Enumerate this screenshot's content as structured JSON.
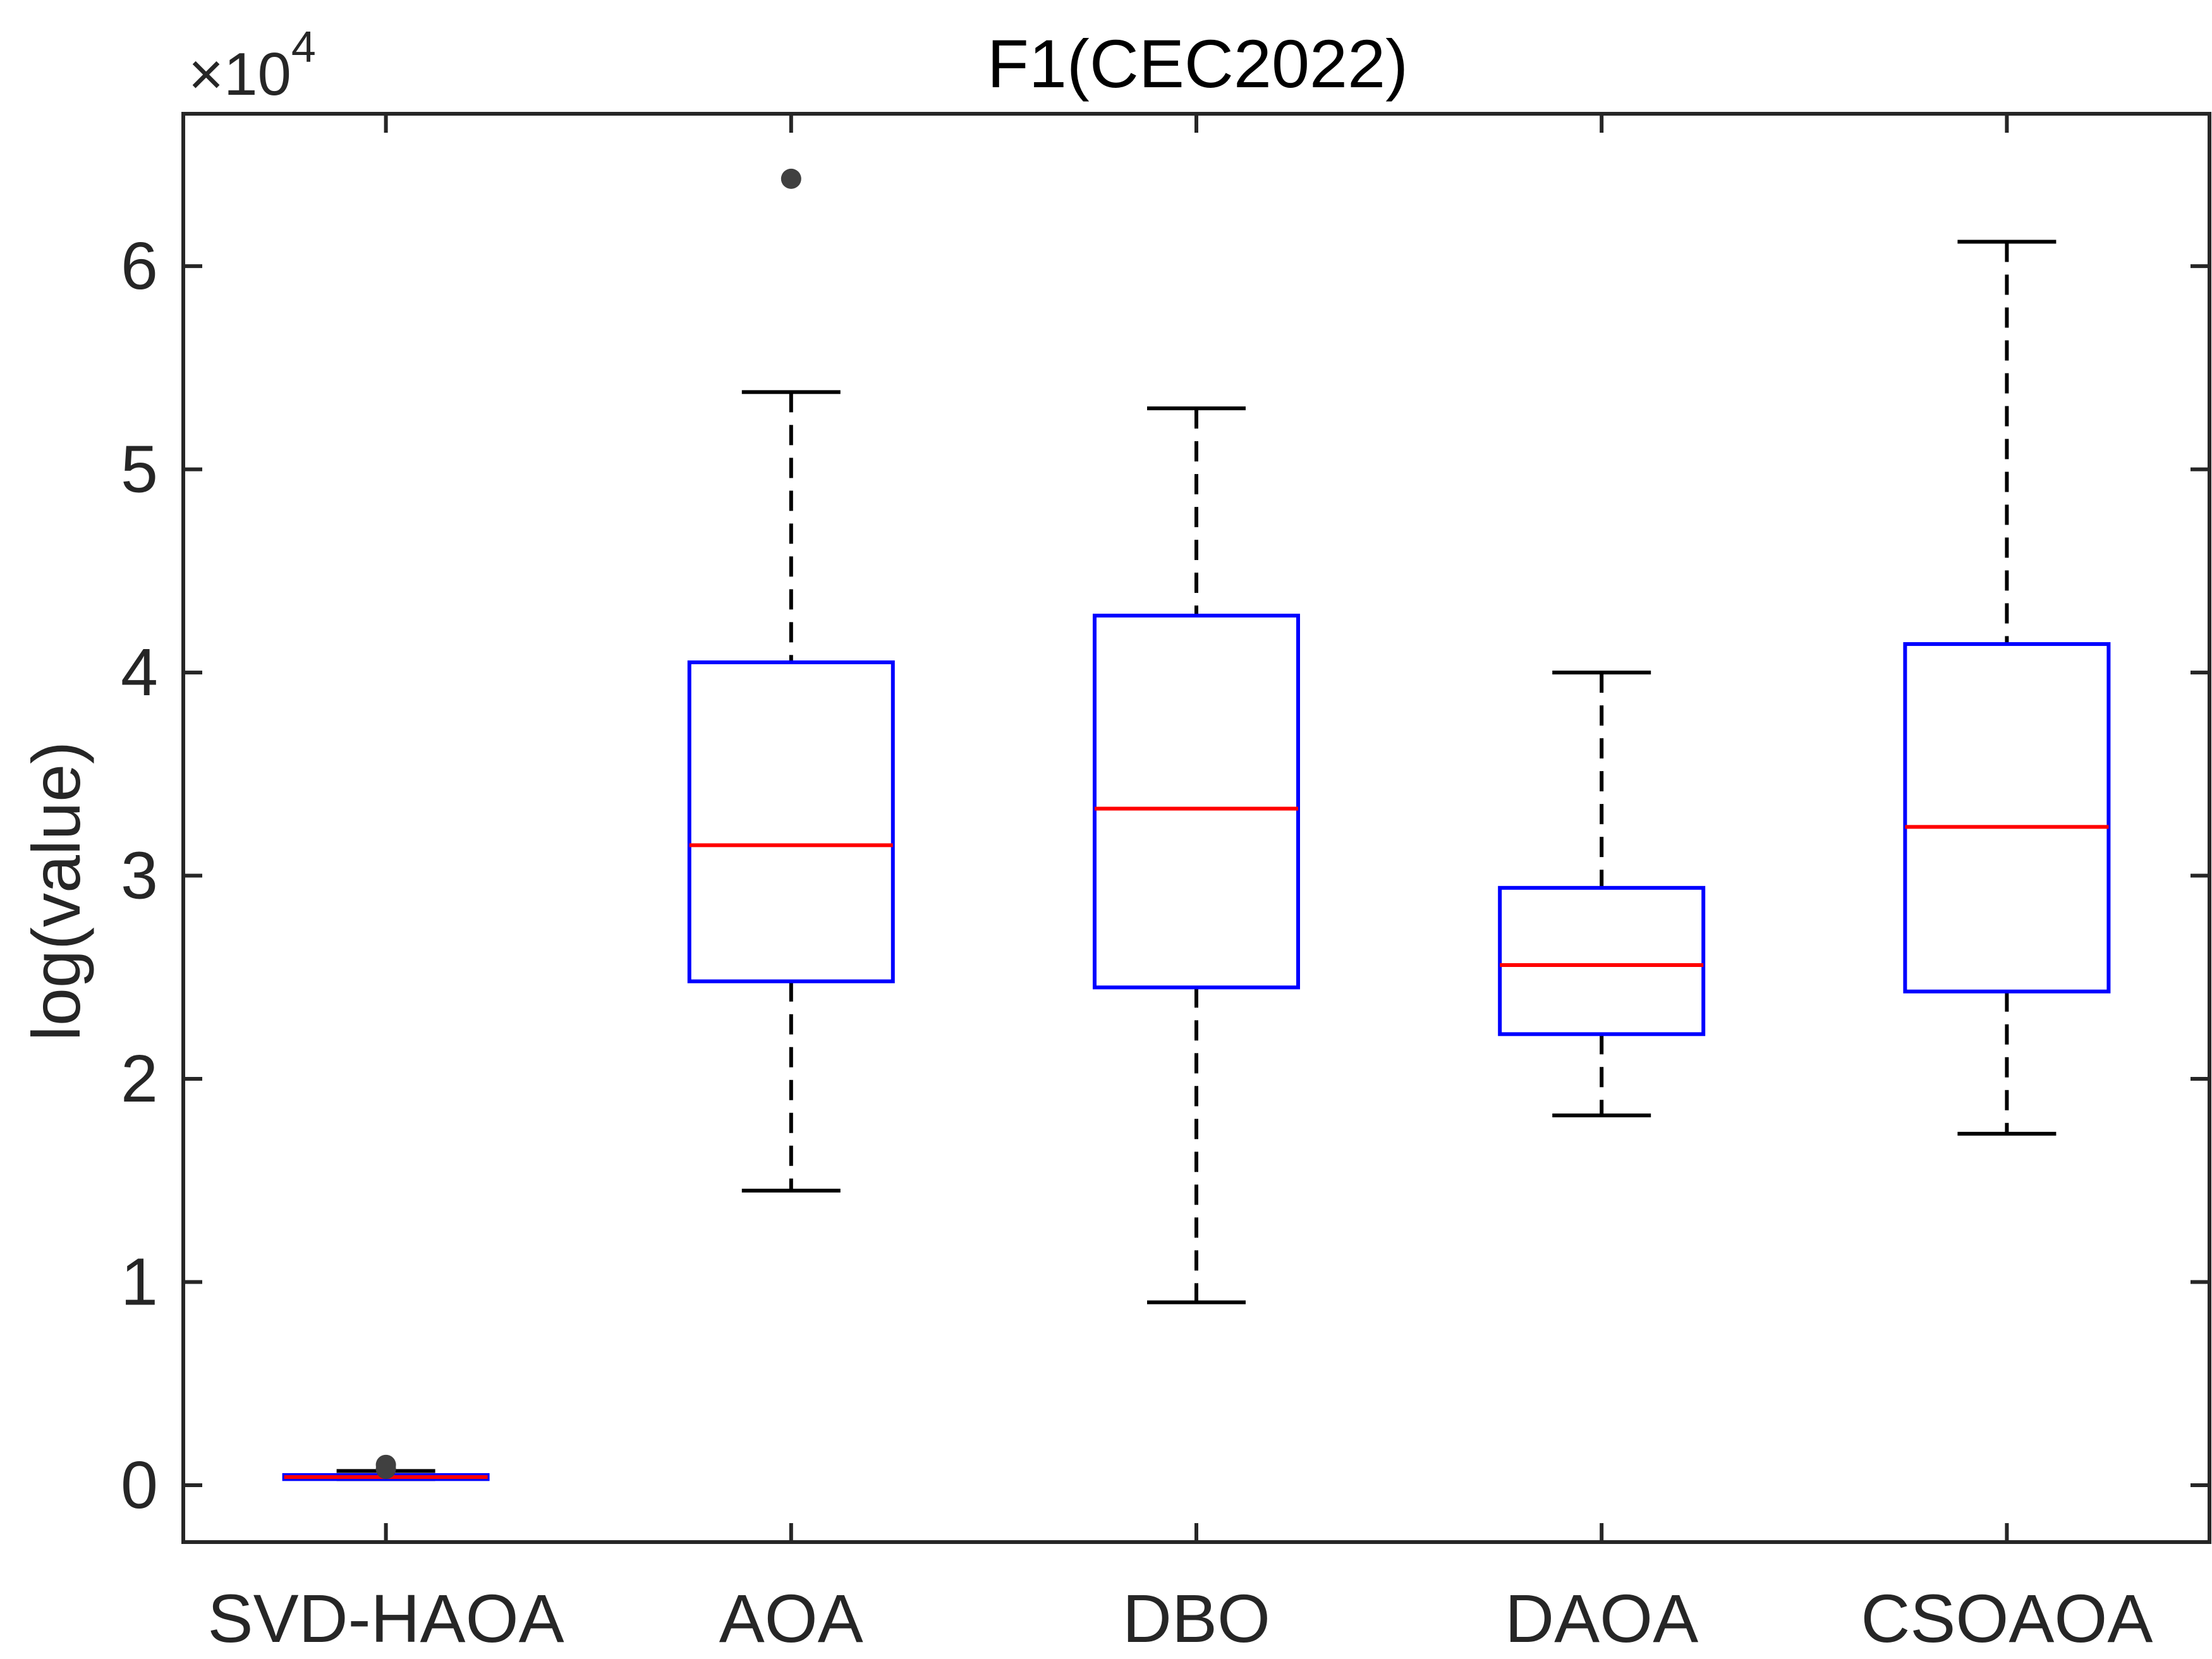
{
  "chart_data": {
    "type": "box",
    "title": "F1(CEC2022)",
    "ylabel": "log(value)",
    "xlabel": "",
    "y_exponent_label": "×10",
    "y_exponent_power": "4",
    "y_multiplier": 10000,
    "ylim": [
      -0.28,
      6.75
    ],
    "yticks": [
      0,
      1,
      2,
      3,
      4,
      5,
      6
    ],
    "ytick_labels": [
      "0",
      "1",
      "2",
      "3",
      "4",
      "5",
      "6"
    ],
    "categories": [
      "SVD-HAOA",
      "AOA",
      "DBO",
      "DAOA",
      "CSOAOA"
    ],
    "grid": false,
    "boxes": [
      {
        "category": "SVD-HAOA",
        "whisker_low": 0.03,
        "q1": 0.03,
        "median": 0.04,
        "q3": 0.05,
        "whisker_high": 0.07,
        "outliers": [
          0.1,
          0.08
        ]
      },
      {
        "category": "AOA",
        "whisker_low": 1.45,
        "q1": 2.48,
        "median": 3.15,
        "q3": 4.05,
        "whisker_high": 5.38,
        "outliers": [
          6.43
        ]
      },
      {
        "category": "DBO",
        "whisker_low": 0.9,
        "q1": 2.45,
        "median": 3.33,
        "q3": 4.28,
        "whisker_high": 5.3,
        "outliers": []
      },
      {
        "category": "DAOA",
        "whisker_low": 1.82,
        "q1": 2.22,
        "median": 2.56,
        "q3": 2.94,
        "whisker_high": 4.0,
        "outliers": []
      },
      {
        "category": "CSOAOA",
        "whisker_low": 1.73,
        "q1": 2.43,
        "median": 3.24,
        "q3": 4.14,
        "whisker_high": 6.12,
        "outliers": []
      }
    ],
    "colors": {
      "box": "#0000ff",
      "median": "#ff0000",
      "whisker": "#000000",
      "outlier": "#404040",
      "axis": "#262626"
    }
  }
}
